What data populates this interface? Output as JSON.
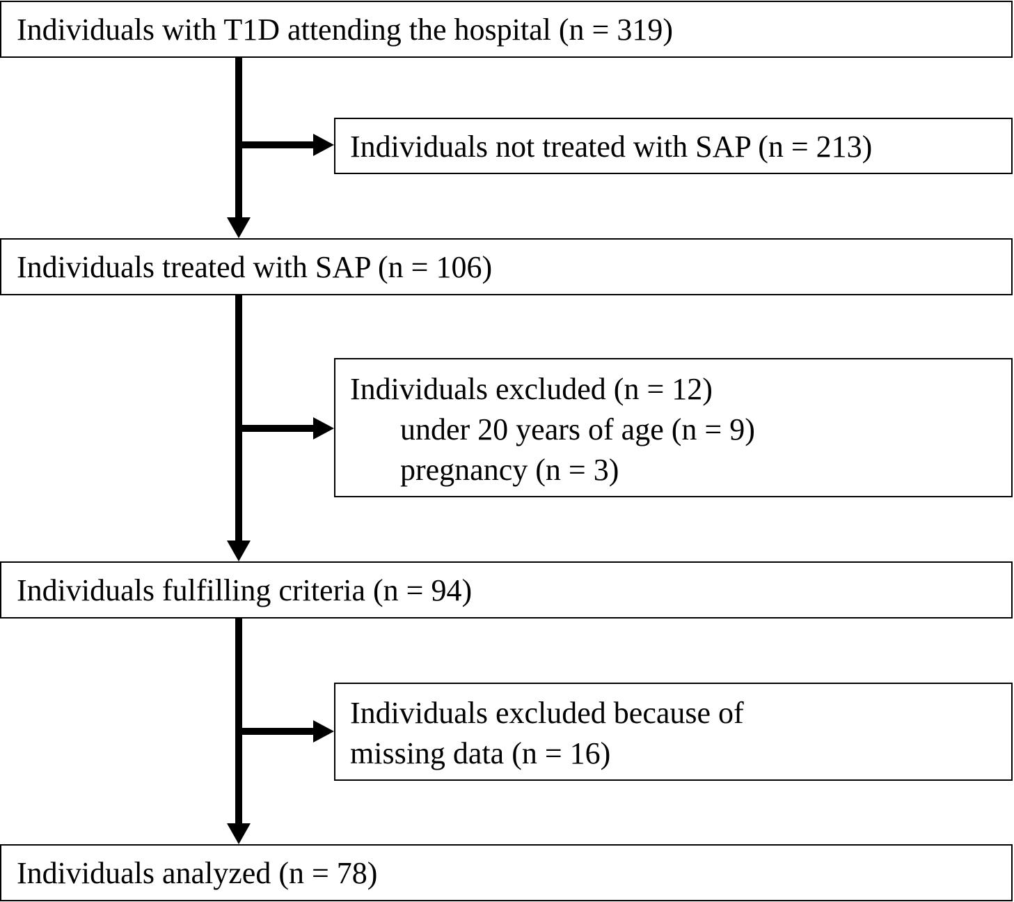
{
  "flowchart": {
    "main_boxes": [
      {
        "text": "Individuals with T1D attending the hospital (n = 319)"
      },
      {
        "text": "Individuals treated with SAP (n = 106)"
      },
      {
        "text": "Individuals fulfilling criteria (n = 94)"
      },
      {
        "text": "Individuals analyzed (n = 78)"
      }
    ],
    "side_boxes": [
      {
        "lines": [
          "Individuals not treated with SAP (n = 213)"
        ]
      },
      {
        "lines": [
          "Individuals excluded (n = 12)",
          "under 20 years of age (n = 9)",
          "pregnancy (n = 3)"
        ]
      },
      {
        "lines": [
          "Individuals excluded because of",
          "missing data (n = 16)"
        ]
      }
    ]
  }
}
